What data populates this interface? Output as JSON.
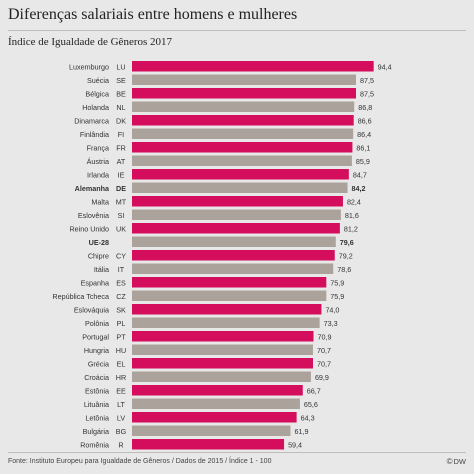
{
  "title": "Diferenças salariais entre homens e mulheres",
  "subtitle": "Índice de Igualdade de Gêneros 2017",
  "source": "Fonte: Instituto Europeu para Igualdade de Gêneros / Dados de 2015 / Índice 1 - 100",
  "logo": "DW",
  "colors": {
    "highlight": "#d40d5d",
    "neutral": "#aba39b",
    "background": "#e8e8e8",
    "text": "#333333"
  },
  "chart_data": {
    "type": "bar",
    "orientation": "horizontal",
    "title": "Índice de Igualdade de Gêneros 2017",
    "xlim": [
      0,
      100
    ],
    "grid": false,
    "rows": [
      {
        "country": "Luxemburgo",
        "code": "LU",
        "value": 94.4,
        "label": "94,4",
        "style": "highlight",
        "bold": false
      },
      {
        "country": "Suécia",
        "code": "SE",
        "value": 87.5,
        "label": "87,5",
        "style": "neutral",
        "bold": false
      },
      {
        "country": "Bélgica",
        "code": "BE",
        "value": 87.5,
        "label": "87,5",
        "style": "highlight",
        "bold": false
      },
      {
        "country": "Holanda",
        "code": "NL",
        "value": 86.8,
        "label": "86,8",
        "style": "neutral",
        "bold": false
      },
      {
        "country": "Dinamarca",
        "code": "DK",
        "value": 86.6,
        "label": "86,6",
        "style": "highlight",
        "bold": false
      },
      {
        "country": "Finlândia",
        "code": "FI",
        "value": 86.4,
        "label": "86,4",
        "style": "neutral",
        "bold": false
      },
      {
        "country": "França",
        "code": "FR",
        "value": 86.1,
        "label": "86,1",
        "style": "highlight",
        "bold": false
      },
      {
        "country": "Áustria",
        "code": "AT",
        "value": 85.9,
        "label": "85,9",
        "style": "neutral",
        "bold": false
      },
      {
        "country": "Irlanda",
        "code": "IE",
        "value": 84.7,
        "label": "84,7",
        "style": "highlight",
        "bold": false
      },
      {
        "country": "Alemanha",
        "code": "DE",
        "value": 84.2,
        "label": "84,2",
        "style": "neutral",
        "bold": true
      },
      {
        "country": "Malta",
        "code": "MT",
        "value": 82.4,
        "label": "82,4",
        "style": "highlight",
        "bold": false
      },
      {
        "country": "Eslovênia",
        "code": "SI",
        "value": 81.6,
        "label": "81,6",
        "style": "neutral",
        "bold": false
      },
      {
        "country": "Reino Unido",
        "code": "UK",
        "value": 81.2,
        "label": "81,2",
        "style": "highlight",
        "bold": false
      },
      {
        "country": "UE-28",
        "code": "",
        "value": 79.6,
        "label": "79,6",
        "style": "neutral",
        "bold": true
      },
      {
        "country": "Chipre",
        "code": "CY",
        "value": 79.2,
        "label": "79,2",
        "style": "highlight",
        "bold": false
      },
      {
        "country": "Itália",
        "code": "IT",
        "value": 78.6,
        "label": "78,6",
        "style": "neutral",
        "bold": false
      },
      {
        "country": "Espanha",
        "code": "ES",
        "value": 75.9,
        "label": "75,9",
        "style": "highlight",
        "bold": false
      },
      {
        "country": "República Tcheca",
        "code": "CZ",
        "value": 75.9,
        "label": "75,9",
        "style": "neutral",
        "bold": false
      },
      {
        "country": "Eslováquia",
        "code": "SK",
        "value": 74.0,
        "label": "74,0",
        "style": "highlight",
        "bold": false
      },
      {
        "country": "Polônia",
        "code": "PL",
        "value": 73.3,
        "label": "73,3",
        "style": "neutral",
        "bold": false
      },
      {
        "country": "Portugal",
        "code": "PT",
        "value": 70.9,
        "label": "70,9",
        "style": "highlight",
        "bold": false
      },
      {
        "country": "Hungria",
        "code": "HU",
        "value": 70.7,
        "label": "70,7",
        "style": "neutral",
        "bold": false
      },
      {
        "country": "Grécia",
        "code": "EL",
        "value": 70.7,
        "label": "70,7",
        "style": "highlight",
        "bold": false
      },
      {
        "country": "Croácia",
        "code": "HR",
        "value": 69.9,
        "label": "69,9",
        "style": "neutral",
        "bold": false
      },
      {
        "country": "Estônia",
        "code": "EE",
        "value": 66.7,
        "label": "66,7",
        "style": "highlight",
        "bold": false
      },
      {
        "country": "Lituânia",
        "code": "LT",
        "value": 65.6,
        "label": "65,6",
        "style": "neutral",
        "bold": false
      },
      {
        "country": "Letônia",
        "code": "LV",
        "value": 64.3,
        "label": "64,3",
        "style": "highlight",
        "bold": false
      },
      {
        "country": "Bulgária",
        "code": "BG",
        "value": 61.9,
        "label": "61,9",
        "style": "neutral",
        "bold": false
      },
      {
        "country": "Romênia",
        "code": "R",
        "value": 59.4,
        "label": "59,4",
        "style": "highlight",
        "bold": false
      }
    ]
  }
}
